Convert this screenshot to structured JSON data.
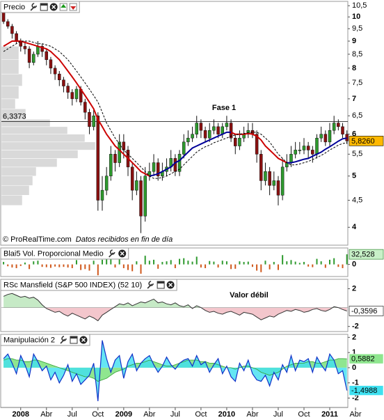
{
  "chart_data": [
    {
      "type": "candlestick",
      "title": "Precio",
      "log_scale": true,
      "categories": [
        null,
        null,
        null,
        null,
        "2008",
        null,
        null,
        null,
        null,
        null,
        "Abr",
        null,
        null,
        null,
        null,
        null,
        "Jul",
        null,
        null,
        null,
        null,
        null,
        "Oct",
        null,
        null,
        null,
        null,
        null,
        "2009",
        null,
        null,
        null,
        null,
        null,
        "Abr",
        null,
        null,
        null,
        null,
        null,
        "Jul",
        null,
        null,
        null,
        null,
        null,
        "Oct",
        null,
        null,
        null,
        null,
        null,
        "2010",
        null,
        null,
        null,
        null,
        null,
        "Abr",
        null,
        null,
        null,
        null,
        null,
        "Jul",
        null,
        null,
        null,
        null,
        null,
        "Oct",
        null,
        null,
        null,
        null,
        null,
        "2011",
        null,
        null,
        null,
        null,
        null,
        "Abr",
        null
      ],
      "open": [
        10.2,
        9.8,
        9.6,
        9.3,
        9.0,
        8.8,
        8.7,
        8.2,
        8.5,
        8.8,
        8.6,
        8.3,
        8.0,
        7.8,
        7.6,
        7.4,
        7.2,
        7.0,
        7.3,
        6.9,
        6.6,
        6.2,
        6.5,
        4.5,
        4.7,
        5.0,
        5.5,
        5.3,
        5.8,
        5.6,
        5.2,
        4.7,
        4.9,
        4.2,
        5.0,
        5.1,
        5.3,
        5.0,
        5.1,
        5.2,
        5.4,
        5.1,
        5.5,
        5.8,
        5.9,
        6.0,
        6.3,
        6.1,
        5.9,
        6.1,
        6.2,
        6.0,
        6.2,
        6.3,
        5.9,
        5.7,
        5.9,
        6.0,
        6.1,
        6.0,
        5.5,
        4.9,
        5.1,
        4.8,
        4.9,
        4.6,
        5.2,
        5.3,
        5.5,
        5.6,
        5.6,
        5.7,
        5.6,
        5.5,
        5.9,
        6.0,
        5.8,
        6.1,
        6.3,
        6.2,
        6.0,
        null,
        null,
        null
      ],
      "high": [
        10.4,
        9.9,
        9.7,
        9.4,
        9.1,
        9.0,
        8.8,
        8.6,
        9.0,
        8.9,
        8.7,
        8.4,
        8.1,
        7.9,
        7.7,
        7.5,
        7.3,
        7.4,
        7.4,
        7.0,
        6.7,
        6.7,
        6.6,
        5.0,
        5.2,
        5.7,
        5.6,
        6.0,
        6.0,
        5.7,
        5.3,
        5.1,
        5.0,
        5.2,
        5.3,
        5.5,
        5.4,
        5.3,
        5.4,
        5.6,
        5.5,
        5.6,
        6.0,
        6.1,
        6.2,
        6.5,
        6.4,
        6.2,
        6.3,
        6.4,
        6.3,
        6.3,
        6.5,
        6.4,
        6.0,
        6.1,
        6.2,
        6.3,
        6.3,
        6.1,
        5.6,
        5.3,
        5.2,
        5.1,
        5.0,
        5.4,
        5.5,
        5.7,
        5.8,
        5.8,
        5.9,
        5.8,
        5.7,
        6.0,
        6.2,
        6.1,
        6.3,
        6.5,
        6.4,
        6.3,
        6.1,
        null,
        null,
        null
      ],
      "low": [
        9.7,
        9.5,
        9.1,
        8.9,
        8.6,
        8.5,
        8.0,
        8.1,
        8.4,
        8.4,
        8.1,
        7.8,
        7.6,
        7.4,
        7.2,
        7.0,
        6.8,
        6.9,
        6.8,
        6.4,
        6.0,
        6.1,
        4.3,
        4.3,
        4.6,
        4.9,
        5.1,
        5.2,
        5.4,
        5.0,
        4.5,
        4.6,
        3.9,
        4.1,
        4.9,
        5.0,
        4.9,
        4.9,
        5.0,
        5.1,
        5.0,
        5.0,
        5.4,
        5.7,
        5.8,
        5.9,
        5.9,
        5.8,
        5.8,
        6.0,
        5.9,
        5.9,
        6.1,
        5.8,
        5.5,
        5.6,
        5.8,
        5.9,
        5.9,
        5.3,
        4.7,
        4.8,
        4.6,
        4.7,
        4.4,
        4.5,
        5.1,
        5.2,
        5.4,
        5.5,
        5.5,
        5.4,
        5.3,
        5.4,
        5.8,
        5.7,
        5.7,
        6.0,
        6.1,
        5.9,
        5.75,
        null,
        null,
        null
      ],
      "close": [
        9.8,
        9.6,
        9.3,
        9.0,
        8.8,
        8.7,
        8.2,
        8.5,
        8.8,
        8.6,
        8.3,
        8.0,
        7.8,
        7.6,
        7.4,
        7.2,
        7.0,
        7.3,
        6.9,
        6.6,
        6.2,
        6.5,
        4.5,
        4.7,
        5.0,
        5.5,
        5.3,
        5.8,
        5.6,
        5.2,
        4.7,
        4.9,
        4.2,
        5.0,
        5.1,
        5.3,
        5.0,
        5.1,
        5.2,
        5.4,
        5.1,
        5.5,
        5.8,
        5.9,
        6.0,
        6.3,
        6.1,
        5.9,
        6.1,
        6.2,
        6.0,
        6.2,
        6.3,
        5.9,
        5.7,
        5.9,
        6.0,
        6.1,
        6.0,
        5.5,
        4.9,
        5.1,
        4.8,
        4.9,
        4.6,
        5.2,
        5.3,
        5.5,
        5.6,
        5.6,
        5.7,
        5.6,
        5.5,
        5.9,
        6.0,
        5.8,
        6.1,
        6.3,
        6.2,
        6.0,
        5.826,
        null,
        null,
        null
      ],
      "up_color": "#2e9a2e",
      "down_color": "#8a1010",
      "series": [
        {
          "color": "#cc0000",
          "values": [
            8.8,
            8.9,
            9.0,
            9.0,
            9.0,
            8.95,
            8.9,
            8.85,
            8.8,
            8.75,
            8.7,
            8.6,
            8.45,
            8.3,
            8.1,
            7.9,
            7.7,
            7.5,
            7.3,
            7.1,
            6.9,
            6.7,
            6.4,
            6.2,
            6.0,
            5.85,
            5.7,
            5.6,
            5.5,
            5.4,
            5.3,
            5.2,
            5.1,
            5.05,
            5.0,
            null,
            null,
            null,
            null,
            null,
            null,
            null,
            null,
            null,
            null,
            null,
            null,
            null,
            null,
            null,
            null,
            null,
            null,
            6.05,
            6.0,
            6.0,
            6.0,
            6.02,
            6.0,
            5.95,
            5.85,
            5.7,
            5.6,
            5.5,
            5.4,
            5.35,
            5.3,
            null,
            null,
            null,
            null,
            null,
            null,
            null,
            null,
            null,
            null,
            null,
            null,
            null,
            null,
            null,
            null,
            null
          ]
        },
        {
          "color": "#000099",
          "values": [
            null,
            null,
            null,
            null,
            null,
            null,
            null,
            null,
            null,
            null,
            null,
            null,
            null,
            null,
            null,
            null,
            null,
            null,
            null,
            null,
            null,
            null,
            null,
            null,
            null,
            null,
            null,
            null,
            null,
            null,
            null,
            null,
            null,
            null,
            5.0,
            5.02,
            5.05,
            5.1,
            5.15,
            5.2,
            5.3,
            5.35,
            5.45,
            5.55,
            5.65,
            5.7,
            5.75,
            5.8,
            5.85,
            5.9,
            5.95,
            6.0,
            6.05,
            6.05,
            null,
            null,
            null,
            null,
            null,
            null,
            null,
            null,
            null,
            null,
            null,
            null,
            5.3,
            5.3,
            5.32,
            5.35,
            5.38,
            5.4,
            5.45,
            5.5,
            5.55,
            5.62,
            5.68,
            5.75,
            5.82,
            5.88,
            5.9,
            null,
            null,
            null
          ]
        },
        {
          "color": "#000000",
          "dashed": true,
          "values": [
            8.6,
            8.7,
            8.8,
            8.9,
            9.0,
            9.0,
            9.0,
            8.95,
            8.9,
            8.9,
            8.85,
            8.8,
            8.7,
            8.6,
            8.45,
            8.3,
            8.1,
            7.9,
            7.7,
            7.5,
            7.3,
            7.1,
            6.9,
            6.6,
            6.3,
            6.1,
            5.9,
            5.75,
            5.6,
            5.5,
            5.4,
            5.3,
            5.2,
            5.1,
            5.0,
            4.95,
            4.95,
            4.97,
            5.0,
            5.05,
            5.1,
            5.15,
            5.25,
            5.35,
            5.45,
            5.55,
            5.62,
            5.68,
            5.72,
            5.78,
            5.82,
            5.86,
            5.9,
            5.95,
            5.98,
            6.0,
            6.02,
            6.04,
            6.05,
            6.05,
            6.0,
            5.9,
            5.8,
            5.65,
            5.5,
            5.4,
            5.3,
            5.25,
            5.25,
            5.27,
            5.3,
            5.33,
            5.37,
            5.42,
            5.47,
            5.53,
            5.6,
            5.66,
            5.72,
            5.76,
            5.78,
            null,
            null,
            null
          ]
        }
      ],
      "ylim": [
        3.7,
        10.7
      ],
      "yticks": [
        {
          "value": 10.5,
          "label": "10,5"
        },
        10,
        {
          "value": 9.5,
          "label": "9,5"
        },
        9,
        {
          "value": 8.5,
          "label": "8,5"
        },
        8,
        {
          "value": 7.5,
          "label": "7,5"
        },
        7,
        {
          "value": 6.5,
          "label": "6,5"
        },
        6,
        {
          "value": 5.5,
          "label": "5,5"
        },
        5,
        {
          "value": 4.5,
          "label": "4,5"
        },
        4
      ],
      "level": {
        "value": 6.3373,
        "label": "6,3373"
      },
      "last_label": "5,8260",
      "last_color": "#ffb800",
      "annotation": "Fase 1",
      "footer": [
        "© ProRealTime.com",
        "Datos recibidos en fin de día"
      ],
      "volume_profile": {
        "bins": [
          4.4,
          4.6,
          4.8,
          5.0,
          5.2,
          5.4,
          5.6,
          5.8,
          6.0,
          6.2,
          6.4,
          6.7,
          7.0,
          7.4,
          7.8,
          8.3,
          8.8
        ],
        "values": [
          30,
          40,
          45,
          50,
          80,
          110,
          135,
          120,
          95,
          70,
          35,
          20,
          25,
          30,
          25,
          25
        ],
        "color": "#d9d9d9"
      }
    },
    {
      "type": "bar",
      "title": "Blai5 Vol. Proporcional Medio",
      "values": [
        8,
        -6,
        -10,
        -12,
        -5,
        6,
        -15,
        10,
        12,
        -8,
        -9,
        -11,
        -7,
        -9,
        -8,
        -10,
        -12,
        14,
        -18,
        -15,
        -20,
        12,
        -35,
        15,
        18,
        22,
        -10,
        20,
        -12,
        -18,
        -22,
        10,
        -30,
        28,
        12,
        15,
        -14,
        8,
        10,
        14,
        -12,
        18,
        20,
        12,
        9,
        25,
        -10,
        -12,
        11,
        9,
        -10,
        12,
        10,
        -15,
        -14,
        10,
        8,
        9,
        -8,
        -20,
        -25,
        12,
        -16,
        8,
        -18,
        30,
        10,
        14,
        9,
        5,
        8,
        -7,
        -9,
        18,
        10,
        -11,
        15,
        20,
        -8,
        -12,
        32.528,
        null,
        null,
        null
      ],
      "up_color": "#2e9a2e",
      "down_color": "#d0581c",
      "ylim": [
        -39,
        53
      ],
      "yticks": [
        0
      ],
      "last_label": "32,528",
      "last_color": "#c8f0c8"
    },
    {
      "type": "area",
      "title": "RSc Mansfield (S&P 500 INDEX) (52 10)",
      "values": [
        1.2,
        1.4,
        1.5,
        1.3,
        1.1,
        1.2,
        1.0,
        1.1,
        0.8,
        0.3,
        -0.1,
        -0.3,
        -0.5,
        -0.4,
        -0.7,
        -0.9,
        -0.6,
        -0.8,
        -1.0,
        -1.2,
        -0.9,
        -1.1,
        -1.4,
        -0.8,
        -0.5,
        -0.2,
        0.1,
        0.4,
        0.3,
        0.5,
        0.2,
        0.4,
        0.6,
        0.5,
        0.7,
        0.9,
        0.5,
        0.6,
        0.4,
        0.3,
        0.5,
        0.2,
        0.1,
        0.3,
        -0.1,
        0.2,
        0.0,
        -0.3,
        -0.5,
        -0.4,
        -0.6,
        -0.7,
        -0.5,
        -0.4,
        -0.6,
        -0.8,
        -0.5,
        -0.6,
        -0.7,
        -1.0,
        -1.3,
        -1.1,
        -0.9,
        -1.0,
        -0.7,
        -0.5,
        -0.3,
        -0.4,
        -0.2,
        -0.3,
        -0.5,
        -0.4,
        -0.2,
        -0.1,
        -0.3,
        -0.4,
        -0.2,
        0.1,
        0.0,
        -0.2,
        -0.3596,
        null,
        null,
        null
      ],
      "color": "#333333",
      "fill_above": "#c6eac6",
      "fill_below": "#f3c6cc",
      "ylim": [
        -2.54,
        3.0
      ],
      "yticks": [
        2,
        -2
      ],
      "last_label": "-0,3596",
      "last_color": "#ffffff",
      "annotation": "Valor débil"
    },
    {
      "type": "oscillator",
      "title": "Manipulación 2",
      "series": [
        {
          "color": "#8fe68f",
          "line_color": "#2f9f2f",
          "values": [
            0.5,
            0.6,
            0.6,
            0.5,
            0.5,
            0.4,
            0.4,
            0.5,
            0.5,
            0.4,
            0.3,
            0.2,
            0.1,
            0.0,
            -0.1,
            -0.2,
            -0.3,
            -0.4,
            -0.5,
            -0.6,
            -0.6,
            -0.7,
            -0.9,
            -0.8,
            -0.7,
            -0.5,
            -0.3,
            -0.2,
            -0.1,
            0.1,
            0.2,
            0.3,
            0.3,
            0.4,
            0.5,
            0.4,
            0.3,
            0.2,
            0.1,
            0.1,
            0.2,
            0.3,
            0.4,
            0.5,
            0.5,
            0.5,
            0.4,
            0.4,
            0.3,
            0.3,
            0.2,
            0.1,
            0.0,
            0.0,
            -0.1,
            0.0,
            0.1,
            0.1,
            0.0,
            -0.1,
            -0.3,
            -0.4,
            -0.5,
            -0.4,
            -0.3,
            -0.1,
            0.1,
            0.2,
            0.3,
            0.3,
            0.3,
            0.4,
            0.4,
            0.3,
            0.3,
            0.4,
            0.5,
            0.5,
            0.6,
            0.6,
            0.5882,
            null,
            null,
            null
          ],
          "last_label": "0,5882"
        },
        {
          "color": "#3fe0f0",
          "line_color": "#1030c8",
          "values": [
            0.6,
            0.9,
            0.3,
            -0.4,
            0.8,
            0.2,
            -0.6,
            0.9,
            0.4,
            -0.2,
            0.1,
            -0.8,
            -0.3,
            -1.0,
            -0.5,
            0.2,
            -0.9,
            -0.4,
            -1.1,
            -0.8,
            -0.5,
            0.3,
            -2.2,
            1.8,
            0.6,
            -0.3,
            0.5,
            0.8,
            -0.7,
            0.4,
            0.9,
            -0.2,
            0.3,
            0.6,
            0.8,
            0.2,
            -0.3,
            0.1,
            0.7,
            0.2,
            -0.1,
            0.3,
            0.5,
            0.6,
            0.1,
            0.8,
            0.2,
            0.4,
            -0.3,
            0.2,
            0.6,
            -0.4,
            0.1,
            -0.6,
            -0.9,
            0.3,
            -0.2,
            0.5,
            -0.4,
            -0.8,
            -0.9,
            -0.5,
            -1.2,
            -0.3,
            -0.8,
            0.2,
            -0.3,
            0.8,
            -0.2,
            0.5,
            0.4,
            0.6,
            -0.3,
            0.7,
            0.2,
            -0.2,
            0.9,
            0.5,
            -0.4,
            -0.2,
            -1.4988,
            null,
            null,
            null
          ],
          "last_label": "-1,4988"
        }
      ],
      "ylim": [
        -2.62,
        2.2
      ],
      "yticks": [
        2,
        1,
        0,
        -1,
        -2
      ]
    }
  ]
}
